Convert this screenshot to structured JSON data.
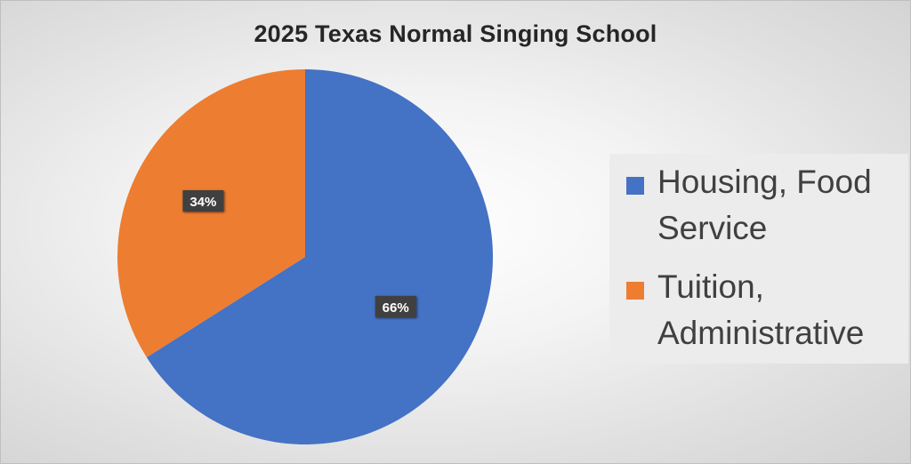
{
  "chart_data": {
    "type": "pie",
    "title": "2025 Texas Normal Singing School",
    "slices": [
      {
        "label": "Housing, Food Service",
        "value": 66,
        "data_label": "66%",
        "color": "#4472C4"
      },
      {
        "label": "Tuition, Administrative",
        "value": 34,
        "data_label": "34%",
        "color": "#ED7D31"
      }
    ],
    "legend_position": "right"
  }
}
